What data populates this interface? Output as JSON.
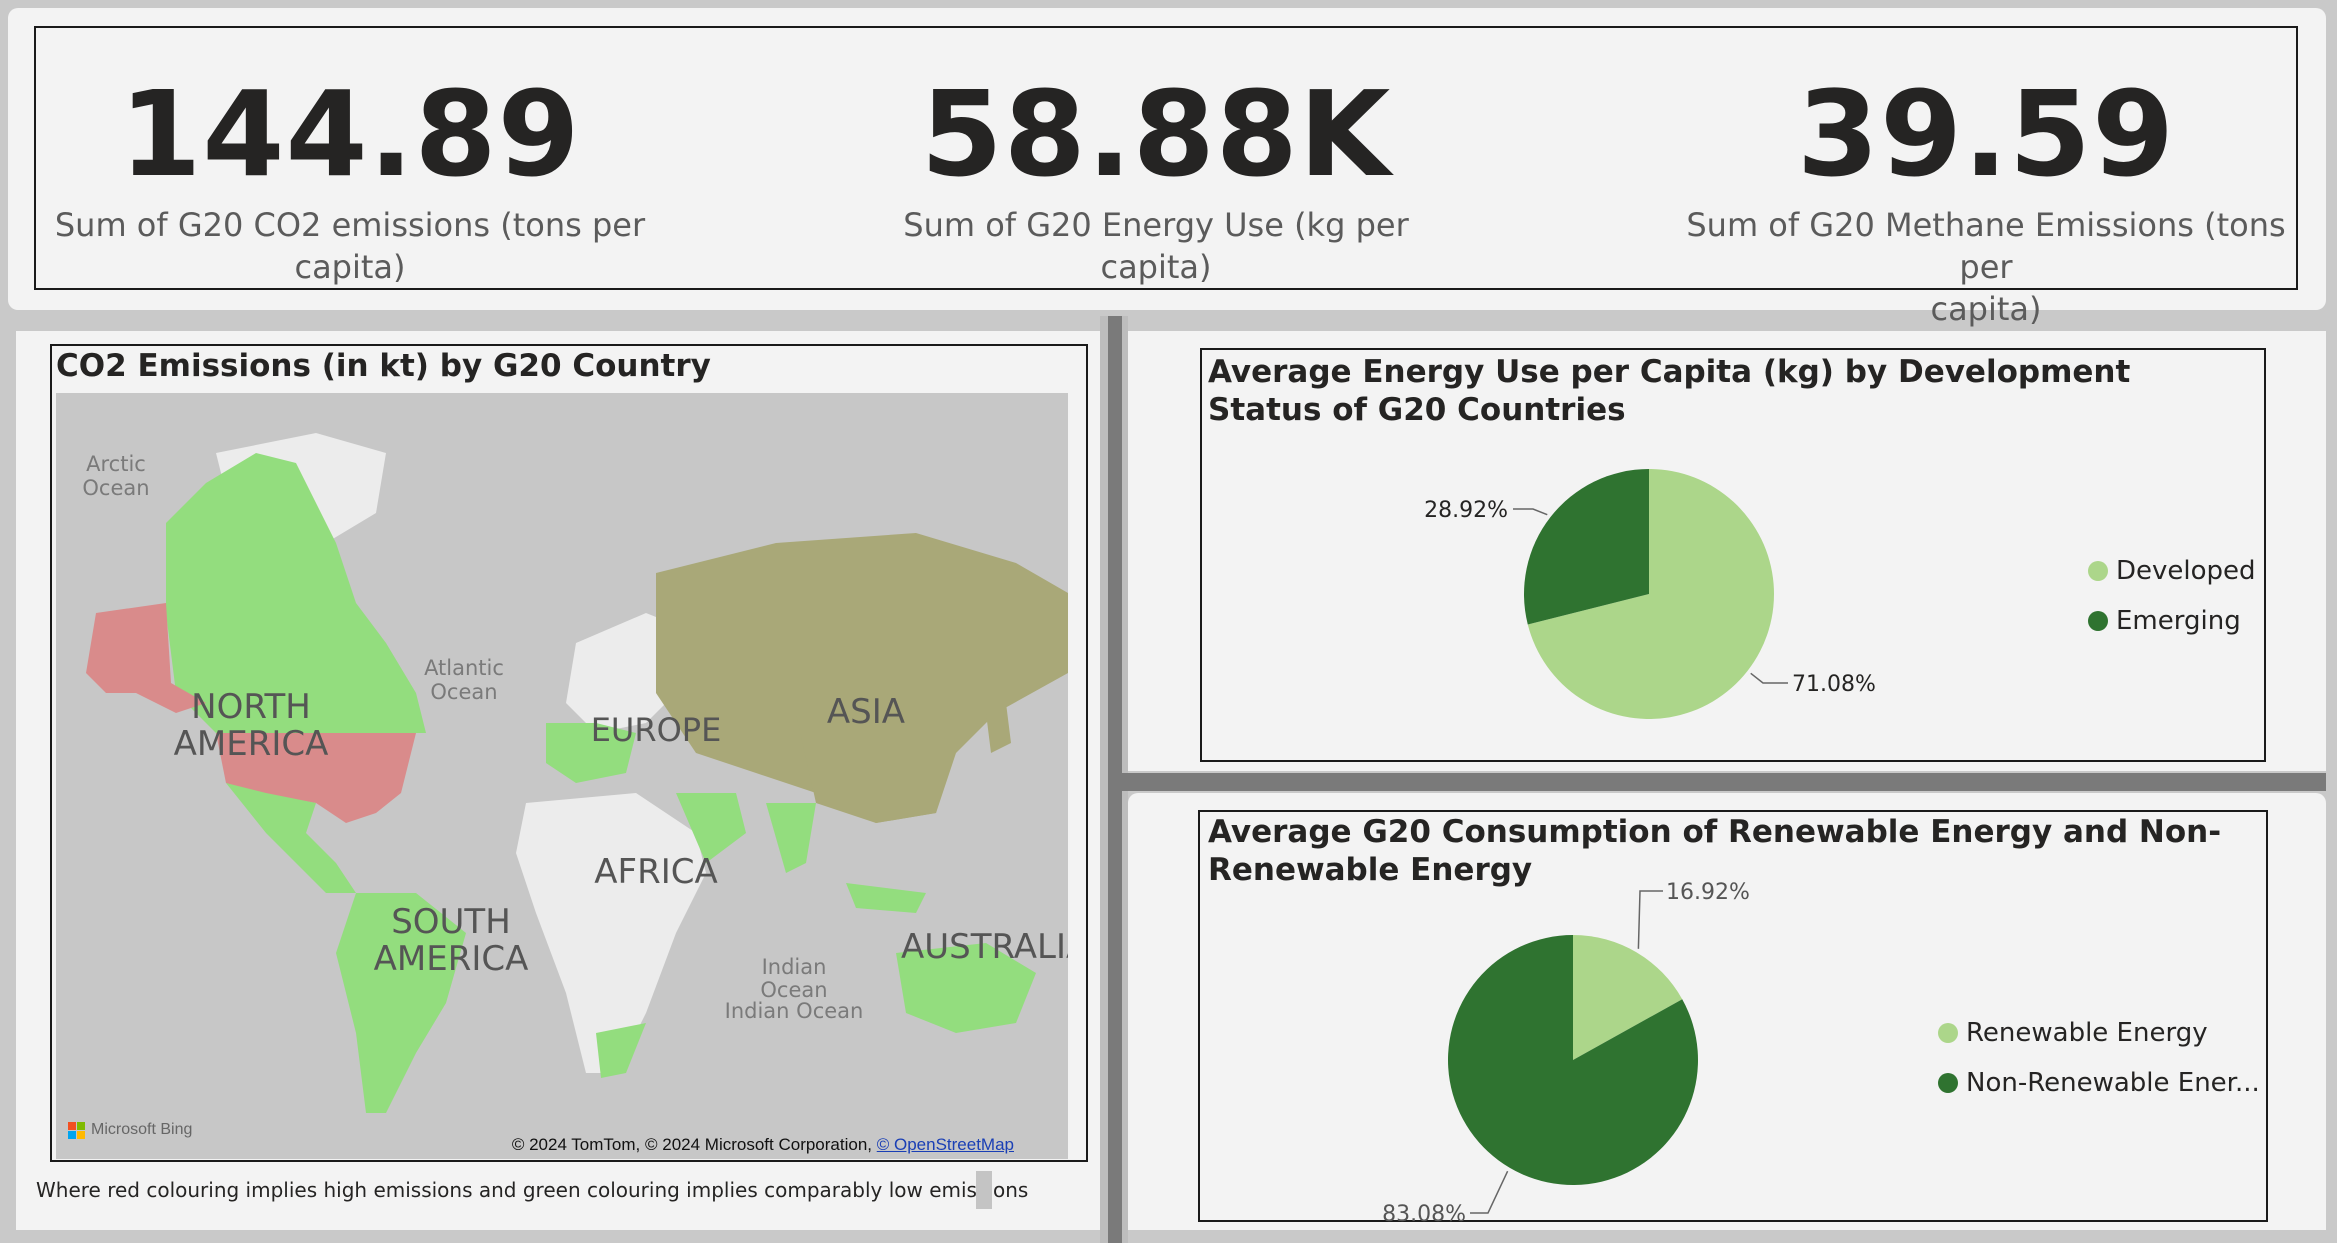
{
  "kpis": [
    {
      "value": "144.89",
      "label_line1": "Sum of G20 CO2 emissions (tons per",
      "label_line2": "capita)"
    },
    {
      "value": "58.88K",
      "label_line1": "Sum of G20 Energy Use (kg per capita)",
      "label_line2": ""
    },
    {
      "value": "39.59",
      "label_line1": "Sum of G20 Methane Emissions (tons per",
      "label_line2": "capita)"
    }
  ],
  "map": {
    "title": "CO2 Emissions (in kt) by G20 Country",
    "continents": {
      "north_america_1": "NORTH",
      "north_america_2": "AMERICA",
      "europe": "EUROPE",
      "asia": "ASIA",
      "africa": "AFRICA",
      "south_america_1": "SOUTH",
      "south_america_2": "AMERICA",
      "australia": "AUSTRALIA"
    },
    "oceans": {
      "arctic_1": "Arctic",
      "arctic_2": "Ocean",
      "atlantic_1": "Atlantic",
      "atlantic_2": "Ocean",
      "indian_1": "Indian",
      "indian_2": "Ocean",
      "indian_full": "Indian Ocean"
    },
    "logo_text": "Microsoft Bing",
    "attribution": "© 2024 TomTom, © 2024 Microsoft Corporation, ",
    "attribution_link": "© OpenStreetMap",
    "footnote": "Where red colouring implies high emissions and green colouring implies comparably low emissions",
    "colors": {
      "high": "#d98b8b",
      "low": "#93dd7e",
      "mid": "#a9a878",
      "land": "#ececec",
      "water": "#c7c7c7"
    }
  },
  "chart_data": [
    {
      "type": "pie",
      "title": "Average Energy Use per Capita (kg) by Development Status of G20 Countries",
      "categories": [
        "Developed",
        "Emerging"
      ],
      "values": [
        71.08,
        28.92
      ],
      "labels": [
        "71.08%",
        "28.92%"
      ],
      "colors": [
        "#acd68a",
        "#2f7330"
      ],
      "legend_position": "right"
    },
    {
      "type": "pie",
      "title": "Average G20 Consumption of Renewable Energy and Non-Renewable Energy",
      "categories": [
        "Renewable Energy",
        "Non-Renewable Ener..."
      ],
      "values": [
        16.92,
        83.08
      ],
      "labels": [
        "16.92%",
        "83.08%"
      ],
      "colors": [
        "#acd68a",
        "#2f7330"
      ],
      "legend_position": "right"
    }
  ]
}
